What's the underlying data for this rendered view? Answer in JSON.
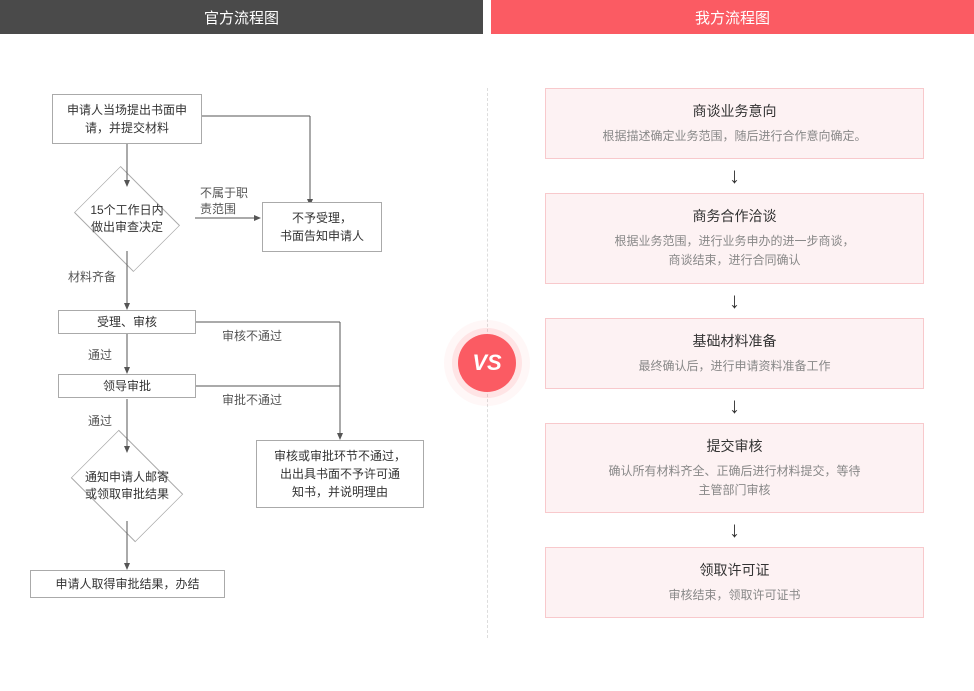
{
  "header": {
    "left_title": "官方流程图",
    "right_title": "我方流程图",
    "left_bg": "#4a4a4a",
    "right_bg": "#fb5b63"
  },
  "vs_label": "VS",
  "left_chart": {
    "type": "flowchart",
    "border_color": "#aaaaaa",
    "font_size": 12,
    "text_color": "#333333",
    "nodes": {
      "n1": {
        "shape": "rect",
        "text": "申请人当场提出书面申\n请，并提交材料"
      },
      "n2": {
        "shape": "diamond",
        "text": "15个工作日内\n做出审查决定"
      },
      "n3": {
        "shape": "rect",
        "text": "不予受理，\n书面告知申请人"
      },
      "n4": {
        "shape": "rect",
        "text": "受理、审核"
      },
      "n5": {
        "shape": "rect",
        "text": "领导审批"
      },
      "n6": {
        "shape": "diamond",
        "text": "通知申请人邮寄\n或领取审批结果"
      },
      "n7": {
        "shape": "rect",
        "text": "审核或审批环节不通过，\n出出具书面不予许可通\n知书，并说明理由"
      },
      "n8": {
        "shape": "rect",
        "text": "申请人取得审批结果，办结"
      }
    },
    "edge_labels": {
      "e_n2_n3": "不属于职\n责范围",
      "e_n2_n4": "材料齐备",
      "e_n4_n5": "通过",
      "e_n4_n7": "审核不通过",
      "e_n5_n6": "通过",
      "e_n5_n7": "审批不通过"
    }
  },
  "right_steps": {
    "type": "infographic",
    "card_border": "#f8c9cc",
    "card_bg": "#fdf2f3",
    "title_fontsize": 14,
    "desc_fontsize": 12,
    "desc_color": "#888888",
    "arrow_color": "#333333",
    "items": [
      {
        "title": "商谈业务意向",
        "desc": "根据描述确定业务范围，随后进行合作意向确定。"
      },
      {
        "title": "商务合作洽谈",
        "desc": "根据业务范围，进行业务申办的进一步商谈，\n商谈结束，进行合同确认"
      },
      {
        "title": "基础材料准备",
        "desc": "最终确认后，进行申请资料准备工作"
      },
      {
        "title": "提交审核",
        "desc": "确认所有材料齐全、正确后进行材料提交，等待\n主管部门审核"
      },
      {
        "title": "领取许可证",
        "desc": "审核结束，领取许可证书"
      }
    ]
  }
}
